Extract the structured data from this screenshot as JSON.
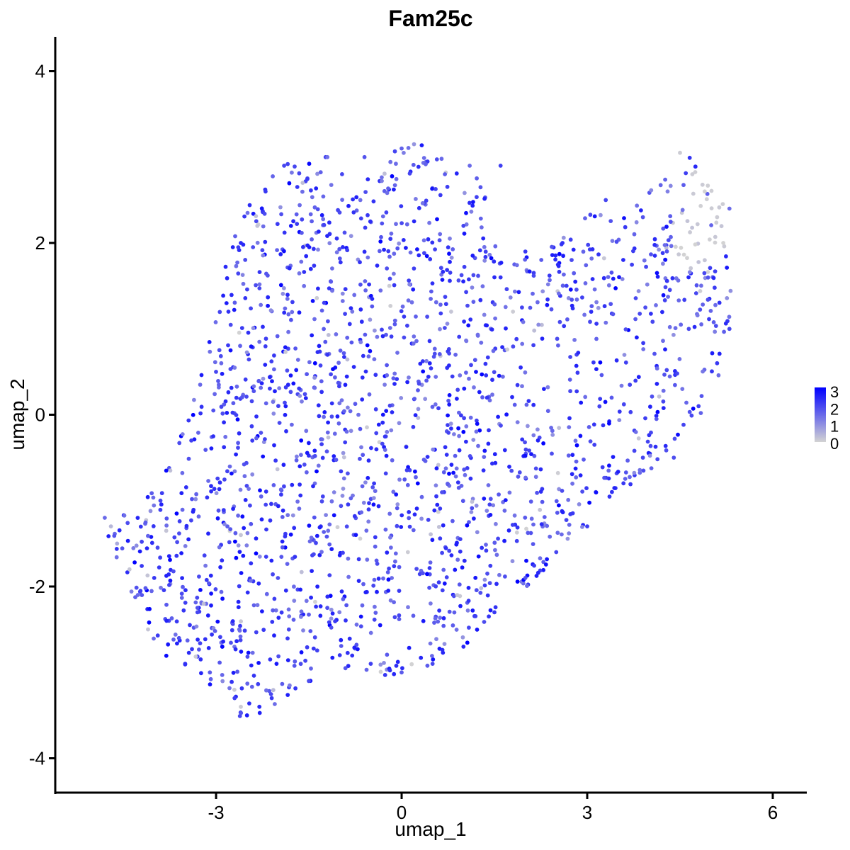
{
  "chart_data": {
    "type": "scatter",
    "title": "Fam25c",
    "xlabel": "umap_1",
    "ylabel": "umap_2",
    "xlim": [
      -5.6,
      6.55
    ],
    "ylim": [
      -4.4,
      4.4
    ],
    "x_ticks": [
      "-3",
      "0",
      "3",
      "6"
    ],
    "y_ticks": [
      "-4",
      "-2",
      "0",
      "2",
      "4"
    ],
    "grid": false,
    "legend": {
      "position": "right",
      "labels": [
        "3",
        "2",
        "1",
        "0"
      ],
      "color_low": "#d3d3d3",
      "color_high": "#0000ff"
    },
    "approx_points": 2000,
    "representative_points": [
      [
        -4.8,
        -1.2,
        1.5
      ],
      [
        -4.7,
        -1.3,
        0.4
      ],
      [
        -4.6,
        -1.5,
        0.6
      ],
      [
        -4.4,
        -1.8,
        0.2
      ],
      [
        -4.2,
        -2.1,
        1.8
      ],
      [
        -4.0,
        -1.9,
        2.2
      ],
      [
        -3.8,
        -2.4,
        2.5
      ],
      [
        -3.6,
        -2.6,
        1.9
      ],
      [
        -3.5,
        -2.9,
        2.3
      ],
      [
        -3.3,
        -2.3,
        2.0
      ],
      [
        -3.1,
        -3.0,
        1.7
      ],
      [
        -2.9,
        -2.7,
        2.9
      ],
      [
        -2.7,
        -3.3,
        2.1
      ],
      [
        -2.5,
        -3.5,
        2.6
      ],
      [
        -2.3,
        -3.4,
        2.4
      ],
      [
        -2.1,
        -3.3,
        2.2
      ],
      [
        -2.6,
        -3.4,
        0.1
      ],
      [
        -3.2,
        -2.2,
        0.3
      ],
      [
        -3.9,
        -1.0,
        2.0
      ],
      [
        -3.4,
        -0.3,
        2.1
      ],
      [
        -3.0,
        0.5,
        2.0
      ],
      [
        -2.8,
        1.2,
        2.3
      ],
      [
        -2.6,
        2.0,
        2.4
      ],
      [
        -2.2,
        2.6,
        2.2
      ],
      [
        -1.9,
        2.9,
        2.0
      ],
      [
        -1.6,
        2.7,
        0.3
      ],
      [
        -1.2,
        3.0,
        1.4
      ],
      [
        -0.6,
        3.0,
        1.8
      ],
      [
        0.0,
        3.1,
        1.6
      ],
      [
        0.2,
        3.15,
        0.9
      ],
      [
        0.7,
        2.8,
        1.7
      ],
      [
        1.1,
        2.9,
        1.5
      ],
      [
        1.6,
        2.9,
        2.1
      ],
      [
        1.0,
        2.2,
        2.0
      ],
      [
        1.5,
        1.6,
        2.4
      ],
      [
        2.0,
        1.9,
        2.2
      ],
      [
        2.6,
        2.0,
        2.3
      ],
      [
        3.3,
        2.5,
        2.0
      ],
      [
        3.9,
        2.3,
        1.8
      ],
      [
        4.3,
        2.6,
        1.2
      ],
      [
        4.5,
        3.05,
        0.1
      ],
      [
        4.7,
        2.8,
        0.1
      ],
      [
        4.9,
        2.6,
        0.0
      ],
      [
        5.1,
        2.3,
        0.1
      ],
      [
        5.2,
        2.0,
        0.0
      ],
      [
        4.9,
        1.8,
        0.2
      ],
      [
        5.3,
        2.4,
        1.5
      ],
      [
        5.3,
        1.0,
        2.0
      ],
      [
        5.1,
        0.6,
        2.2
      ],
      [
        4.8,
        0.1,
        2.1
      ],
      [
        4.4,
        -0.5,
        1.9
      ],
      [
        3.9,
        -0.5,
        2.0
      ],
      [
        3.4,
        -0.9,
        2.3
      ],
      [
        3.0,
        -1.3,
        2.1
      ],
      [
        2.5,
        -1.6,
        2.0
      ],
      [
        2.0,
        -1.9,
        1.8
      ],
      [
        1.5,
        -2.3,
        2.2
      ],
      [
        1.0,
        -2.7,
        2.4
      ],
      [
        0.5,
        -2.9,
        2.0
      ],
      [
        0.0,
        -3.0,
        1.7
      ],
      [
        -0.5,
        -2.9,
        2.1
      ],
      [
        -1.0,
        -2.8,
        2.2
      ],
      [
        -1.5,
        -3.1,
        1.9
      ],
      [
        0.9,
        -2.1,
        0.2
      ],
      [
        0.1,
        -1.6,
        0.1
      ],
      [
        -0.2,
        1.5,
        0.1
      ],
      [
        0.8,
        1.2,
        0.2
      ],
      [
        1.8,
        1.2,
        0.1
      ],
      [
        -2.6,
        -1.4,
        0.2
      ],
      [
        -4.1,
        -2.5,
        0.2
      ],
      [
        1.0,
        -0.2,
        3.0
      ],
      [
        -1.4,
        0.6,
        3.0
      ],
      [
        -2.9,
        -2.7,
        2.9
      ],
      [
        -0.3,
        0.0,
        2.7
      ],
      [
        2.3,
        0.3,
        2.5
      ],
      [
        3.8,
        0.9,
        2.6
      ]
    ]
  }
}
